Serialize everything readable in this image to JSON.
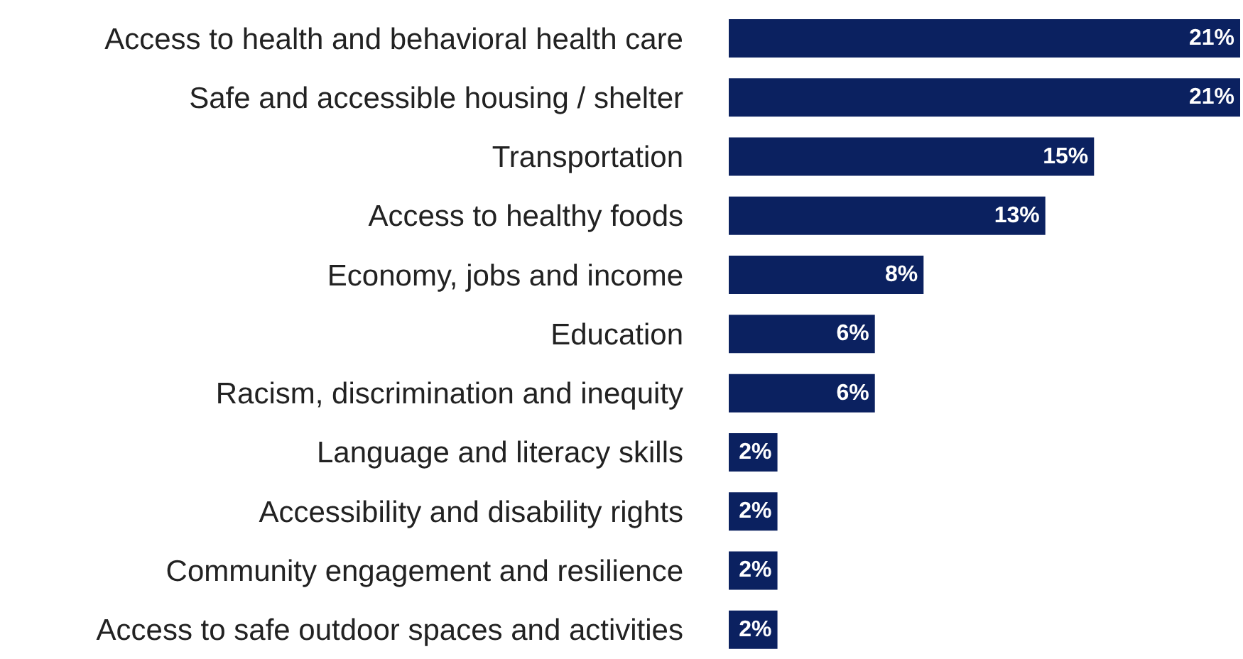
{
  "chart_data": {
    "type": "bar",
    "orientation": "horizontal",
    "categories": [
      "Access to health and behavioral health care",
      "Safe and accessible housing / shelter",
      "Transportation",
      "Access to healthy foods",
      "Economy, jobs and income",
      "Education",
      "Racism, discrimination and inequity",
      "Language and literacy skills",
      "Accessibility and disability rights",
      "Community engagement and resilience",
      "Access to safe outdoor spaces and activities"
    ],
    "values": [
      21,
      21,
      15,
      13,
      8,
      6,
      6,
      2,
      2,
      2,
      2
    ],
    "value_labels": [
      "21%",
      "21%",
      "15%",
      "13%",
      "8%",
      "6%",
      "6%",
      "2%",
      "2%",
      "2%",
      "2%"
    ],
    "color": "#0b2160",
    "tick_labels": "y",
    "grid": false
  }
}
